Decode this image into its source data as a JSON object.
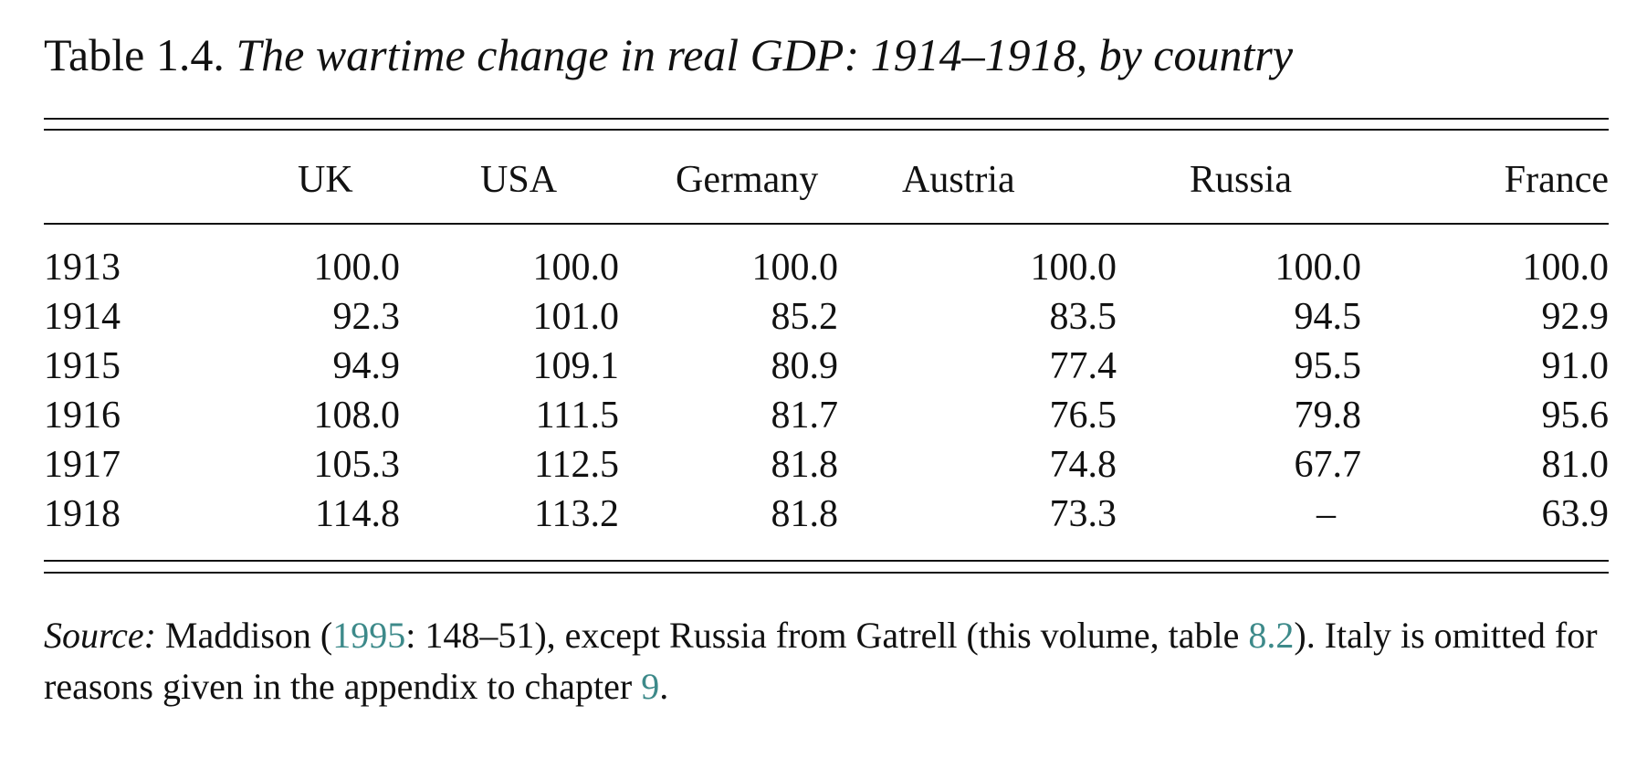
{
  "caption": {
    "label": "Table 1.4.",
    "title": "The wartime change in real GDP: 1914–1918, by country"
  },
  "table": {
    "columns": [
      "",
      "UK",
      "USA",
      "Germany",
      "Austria",
      "Russia",
      "France"
    ],
    "rows": [
      [
        "1913",
        "100.0",
        "100.0",
        "100.0",
        "100.0",
        "100.0",
        "100.0"
      ],
      [
        "1914",
        "92.3",
        "101.0",
        "85.2",
        "83.5",
        "94.5",
        "92.9"
      ],
      [
        "1915",
        "94.9",
        "109.1",
        "80.9",
        "77.4",
        "95.5",
        "91.0"
      ],
      [
        "1916",
        "108.0",
        "111.5",
        "81.7",
        "76.5",
        "79.8",
        "95.6"
      ],
      [
        "1917",
        "105.3",
        "112.5",
        "81.8",
        "74.8",
        "67.7",
        "81.0"
      ],
      [
        "1918",
        "114.8",
        "113.2",
        "81.8",
        "73.3",
        "–",
        "63.9"
      ]
    ]
  },
  "note": {
    "label": "Source:",
    "t1": " Maddison (",
    "link_year": "1995",
    "t2": ": 148–51), except Russia from Gatrell (this volume, table ",
    "link_table": "8.2",
    "t3": "). Italy is omitted for reasons given in the appendix to chapter ",
    "link_chapter": "9",
    "t4": ".",
    "link_color": "#3d8a8a"
  }
}
